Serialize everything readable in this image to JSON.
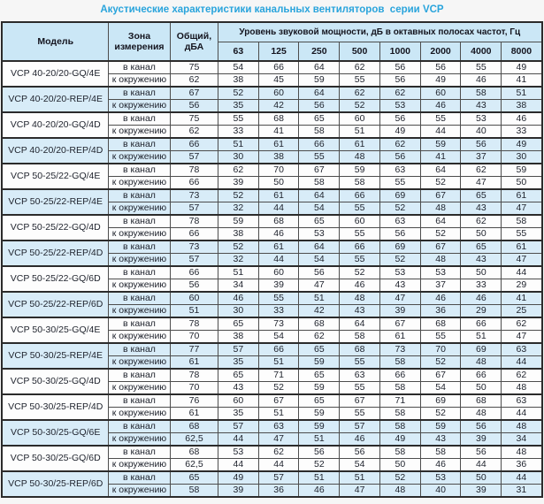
{
  "title": "Акустические характеристики канальных вентиляторов  серии VCP",
  "colors": {
    "title": "#29a4dc",
    "header_bg": "#cbe7f6",
    "row_shaded_bg": "#d8ecf8",
    "border_dark": "#2b2b2b"
  },
  "table": {
    "headers": {
      "model": "Модель",
      "zone": "Зона измерения",
      "total": "Общий, дБА",
      "spectrum": "Уровень звуковой мощности, дБ в октавных полосах частот, Гц",
      "frequencies": [
        "63",
        "125",
        "250",
        "500",
        "1000",
        "2000",
        "4000",
        "8000"
      ]
    },
    "groups": [
      {
        "model": "VCP 40-20/20-GQ/4E",
        "shaded": false,
        "rows": [
          {
            "zone": "в канал",
            "total": "75",
            "bands": [
              "54",
              "66",
              "64",
              "62",
              "56",
              "56",
              "55",
              "49"
            ]
          },
          {
            "zone": "к окружению",
            "total": "62",
            "bands": [
              "38",
              "45",
              "59",
              "55",
              "56",
              "49",
              "46",
              "41"
            ]
          }
        ]
      },
      {
        "model": "VCP 40-20/20-REP/4E",
        "shaded": true,
        "rows": [
          {
            "zone": "в канал",
            "total": "67",
            "bands": [
              "52",
              "60",
              "64",
              "62",
              "62",
              "60",
              "58",
              "51"
            ]
          },
          {
            "zone": "к окружению",
            "total": "56",
            "bands": [
              "35",
              "42",
              "56",
              "52",
              "53",
              "46",
              "43",
              "38"
            ]
          }
        ]
      },
      {
        "model": "VCP 40-20/20-GQ/4D",
        "shaded": false,
        "rows": [
          {
            "zone": "в канал",
            "total": "75",
            "bands": [
              "55",
              "68",
              "65",
              "60",
              "56",
              "55",
              "53",
              "46"
            ]
          },
          {
            "zone": "к окружению",
            "total": "62",
            "bands": [
              "33",
              "41",
              "58",
              "51",
              "49",
              "44",
              "40",
              "33"
            ]
          }
        ]
      },
      {
        "model": "VCP 40-20/20-REP/4D",
        "shaded": true,
        "rows": [
          {
            "zone": "в канал",
            "total": "66",
            "bands": [
              "51",
              "61",
              "66",
              "61",
              "62",
              "59",
              "56",
              "49"
            ]
          },
          {
            "zone": "к окружению",
            "total": "57",
            "bands": [
              "30",
              "38",
              "55",
              "48",
              "56",
              "41",
              "37",
              "30"
            ]
          }
        ]
      },
      {
        "model": "VCP 50-25/22-GQ/4E",
        "shaded": false,
        "rows": [
          {
            "zone": "в канал",
            "total": "78",
            "bands": [
              "62",
              "70",
              "67",
              "59",
              "63",
              "64",
              "62",
              "59"
            ]
          },
          {
            "zone": "к окружению",
            "total": "66",
            "bands": [
              "39",
              "50",
              "58",
              "58",
              "55",
              "52",
              "47",
              "50"
            ]
          }
        ]
      },
      {
        "model": "VCP 50-25/22-REP/4E",
        "shaded": true,
        "rows": [
          {
            "zone": "в канал",
            "total": "73",
            "bands": [
              "52",
              "61",
              "64",
              "66",
              "69",
              "67",
              "65",
              "61"
            ]
          },
          {
            "zone": "к окружению",
            "total": "57",
            "bands": [
              "32",
              "44",
              "54",
              "55",
              "52",
              "48",
              "43",
              "47"
            ]
          }
        ]
      },
      {
        "model": "VCP 50-25/22-GQ/4D",
        "shaded": false,
        "rows": [
          {
            "zone": "в канал",
            "total": "78",
            "bands": [
              "59",
              "68",
              "65",
              "60",
              "63",
              "64",
              "62",
              "58"
            ]
          },
          {
            "zone": "к окружению",
            "total": "66",
            "bands": [
              "38",
              "46",
              "53",
              "55",
              "56",
              "52",
              "50",
              "55"
            ]
          }
        ]
      },
      {
        "model": "VCP 50-25/22-REP/4D",
        "shaded": true,
        "rows": [
          {
            "zone": "в канал",
            "total": "73",
            "bands": [
              "52",
              "61",
              "64",
              "66",
              "69",
              "67",
              "65",
              "61"
            ]
          },
          {
            "zone": "к окружению",
            "total": "57",
            "bands": [
              "32",
              "44",
              "54",
              "55",
              "52",
              "48",
              "43",
              "47"
            ]
          }
        ]
      },
      {
        "model": "VCP 50-25/22-GQ/6D",
        "shaded": false,
        "rows": [
          {
            "zone": "в канал",
            "total": "66",
            "bands": [
              "51",
              "60",
              "56",
              "52",
              "53",
              "53",
              "50",
              "44"
            ]
          },
          {
            "zone": "к окружению",
            "total": "56",
            "bands": [
              "34",
              "39",
              "47",
              "46",
              "43",
              "37",
              "33",
              "29"
            ]
          }
        ]
      },
      {
        "model": "VCP 50-25/22-REP/6D",
        "shaded": true,
        "rows": [
          {
            "zone": "в канал",
            "total": "60",
            "bands": [
              "46",
              "55",
              "51",
              "48",
              "47",
              "46",
              "46",
              "41"
            ]
          },
          {
            "zone": "к окружению",
            "total": "51",
            "bands": [
              "30",
              "33",
              "42",
              "43",
              "39",
              "36",
              "29",
              "25"
            ]
          }
        ]
      },
      {
        "model": "VCP 50-30/25-GQ/4E",
        "shaded": false,
        "rows": [
          {
            "zone": "в канал",
            "total": "78",
            "bands": [
              "65",
              "73",
              "68",
              "64",
              "67",
              "68",
              "66",
              "62"
            ]
          },
          {
            "zone": "к окружению",
            "total": "70",
            "bands": [
              "38",
              "54",
              "62",
              "58",
              "61",
              "55",
              "51",
              "47"
            ]
          }
        ]
      },
      {
        "model": "VCP 50-30/25-REP/4E",
        "shaded": true,
        "rows": [
          {
            "zone": "в канал",
            "total": "77",
            "bands": [
              "57",
              "66",
              "65",
              "68",
              "73",
              "70",
              "69",
              "63"
            ]
          },
          {
            "zone": "к окружению",
            "total": "61",
            "bands": [
              "35",
              "51",
              "59",
              "55",
              "58",
              "52",
              "48",
              "44"
            ]
          }
        ]
      },
      {
        "model": "VCP 50-30/25-GQ/4D",
        "shaded": false,
        "rows": [
          {
            "zone": "в канал",
            "total": "78",
            "bands": [
              "65",
              "71",
              "65",
              "63",
              "66",
              "67",
              "66",
              "62"
            ]
          },
          {
            "zone": "к окружению",
            "total": "70",
            "bands": [
              "43",
              "52",
              "59",
              "55",
              "58",
              "54",
              "50",
              "48"
            ]
          }
        ]
      },
      {
        "model": "VCP 50-30/25-REP/4D",
        "shaded": false,
        "rows": [
          {
            "zone": "в канал",
            "total": "76",
            "bands": [
              "60",
              "67",
              "65",
              "67",
              "71",
              "69",
              "68",
              "63"
            ]
          },
          {
            "zone": "к окружению",
            "total": "61",
            "bands": [
              "35",
              "51",
              "59",
              "55",
              "58",
              "52",
              "48",
              "44"
            ]
          }
        ]
      },
      {
        "model": "VCP 50-30/25-GQ/6E",
        "shaded": true,
        "rows": [
          {
            "zone": "в канал",
            "total": "68",
            "bands": [
              "57",
              "63",
              "59",
              "57",
              "58",
              "59",
              "56",
              "48"
            ]
          },
          {
            "zone": "к окружению",
            "total": "62,5",
            "bands": [
              "44",
              "47",
              "51",
              "46",
              "49",
              "43",
              "39",
              "34"
            ]
          }
        ]
      },
      {
        "model": "VCP 50-30/25-GQ/6D",
        "shaded": false,
        "rows": [
          {
            "zone": "в канал",
            "total": "68",
            "bands": [
              "53",
              "62",
              "56",
              "56",
              "58",
              "58",
              "56",
              "48"
            ]
          },
          {
            "zone": "к окружению",
            "total": "62,5",
            "bands": [
              "44",
              "44",
              "52",
              "54",
              "50",
              "46",
              "44",
              "36"
            ]
          }
        ]
      },
      {
        "model": "VCP 50-30/25-REP/6D",
        "shaded": true,
        "rows": [
          {
            "zone": "в канал",
            "total": "65",
            "bands": [
              "49",
              "57",
              "51",
              "51",
              "52",
              "53",
              "50",
              "44"
            ]
          },
          {
            "zone": "к окружению",
            "total": "58",
            "bands": [
              "39",
              "36",
              "46",
              "47",
              "48",
              "40",
              "39",
              "31"
            ]
          }
        ]
      }
    ]
  }
}
